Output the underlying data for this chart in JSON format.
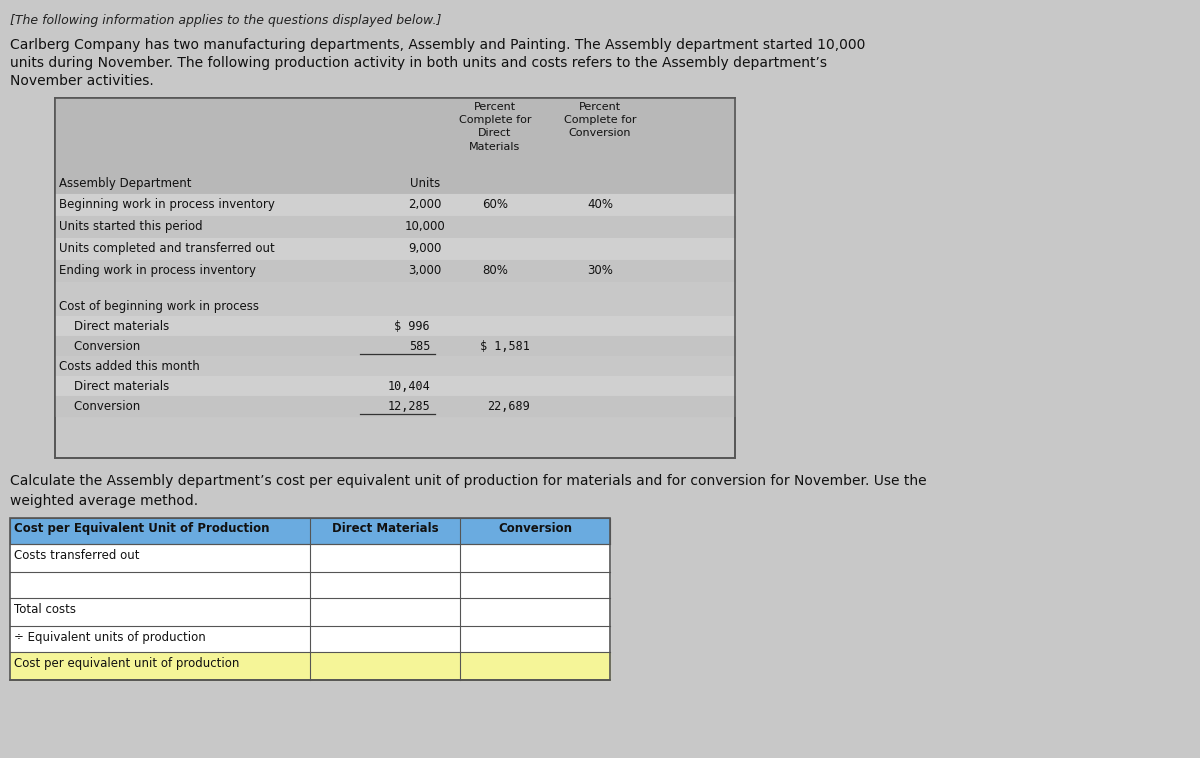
{
  "bg_color": "#c8c8c8",
  "table_bg": "#b8b8b8",
  "row_light": "#d4d4d4",
  "row_dark": "#c0c0c0",
  "white": "#ffffff",
  "header_blue": "#6aabe0",
  "yellow": "#f5f598",
  "border_color": "#888888",
  "text_dark": "#111111",
  "italic_header": "[The following information applies to the questions displayed below.]",
  "intro_line1": "Carlberg Company has two manufacturing departments, Assembly and Painting. The Assembly department started 10,000",
  "intro_line2": "units during November. The following production activity in both units and costs refers to the Assembly department’s",
  "intro_line3": "November activities.",
  "t1_col1_header": "Assembly Department",
  "t1_col2_header": "Units",
  "t1_col3_header": "Percent\nComplete for\nDirect\nMaterials",
  "t1_col4_header": "Percent\nComplete for\nConversion",
  "t1_rows": [
    [
      "Beginning work in process inventory",
      "2,000",
      "60%",
      "40%"
    ],
    [
      "Units started this period",
      "10,000",
      "",
      ""
    ],
    [
      "Units completed and transferred out",
      "9,000",
      "",
      ""
    ],
    [
      "Ending work in process inventory",
      "3,000",
      "80%",
      "30%"
    ]
  ],
  "t1_cost_rows": [
    [
      "Cost of beginning work in process",
      "",
      ""
    ],
    [
      "    Direct materials",
      "$ 996",
      ""
    ],
    [
      "    Conversion",
      "585",
      "$ 1,581"
    ],
    [
      "Costs added this month",
      "",
      ""
    ],
    [
      "    Direct materials",
      "10,404",
      ""
    ],
    [
      "    Conversion",
      "12,285",
      "22,689"
    ]
  ],
  "question_text_1": "Calculate the Assembly department’s cost per equivalent unit of production for materials and for conversion for November. Use the",
  "question_text_2": "weighted average method.",
  "t2_headers": [
    "Cost per Equivalent Unit of Production",
    "Direct Materials",
    "Conversion"
  ],
  "t2_rows": [
    [
      "Costs transferred out",
      "",
      ""
    ],
    [
      "",
      "",
      ""
    ],
    [
      "Total costs",
      "",
      ""
    ],
    [
      "÷ Equivalent units of production",
      "",
      ""
    ],
    [
      "Cost per equivalent unit of production",
      "",
      ""
    ]
  ],
  "t2_yellow_row_idx": 4
}
